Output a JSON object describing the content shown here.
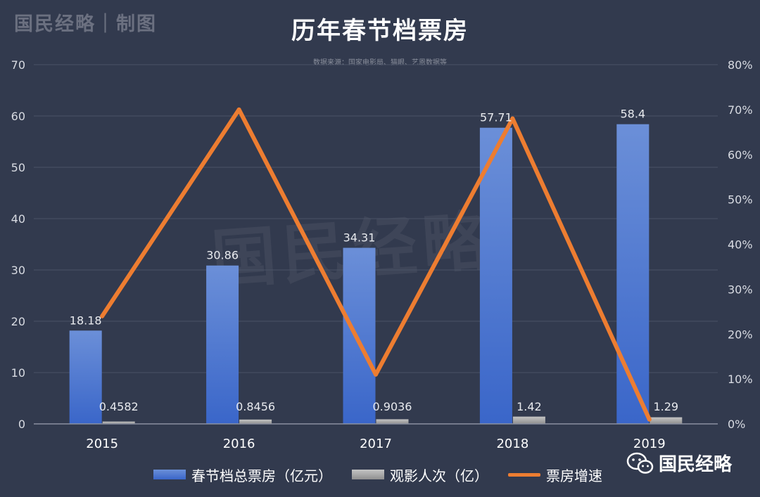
{
  "brand": "国民经略｜制图",
  "watermark": "国民经略",
  "wechat_account": "国民经略",
  "chart_data": {
    "type": "bar",
    "title": "历年春节档票房",
    "subtitle": "数据来源：国家电影局、猫眼、艺恩数据等",
    "categories": [
      "2015",
      "2016",
      "2017",
      "2018",
      "2019"
    ],
    "series": [
      {
        "name": "春节档总票房（亿元）",
        "type": "bar",
        "axis": "left",
        "values": [
          18.18,
          30.86,
          34.31,
          57.71,
          58.4
        ],
        "labels": [
          "18.18",
          "30.86",
          "34.31",
          "57.71",
          "58.4"
        ],
        "color": "#4a74d0"
      },
      {
        "name": "观影人次（亿）",
        "type": "bar",
        "axis": "left",
        "values": [
          0.4582,
          0.8456,
          0.9036,
          1.42,
          1.29
        ],
        "labels": [
          "0.4582",
          "0.8456",
          "0.9036",
          "1.42",
          "1.29"
        ],
        "color": "#a6a6a6"
      },
      {
        "name": "票房增速",
        "type": "line",
        "axis": "right",
        "values": [
          24,
          70,
          11,
          68,
          1
        ],
        "color": "#ed7d31"
      }
    ],
    "y_left": {
      "ylim": [
        0,
        70
      ],
      "ticks": [
        "0",
        "10",
        "20",
        "30",
        "40",
        "50",
        "60",
        "70"
      ]
    },
    "y_right": {
      "ylim": [
        0,
        80
      ],
      "ticks": [
        "0%",
        "10%",
        "20%",
        "30%",
        "40%",
        "50%",
        "60%",
        "70%",
        "80%"
      ]
    },
    "grid": true,
    "legend_position": "bottom"
  }
}
